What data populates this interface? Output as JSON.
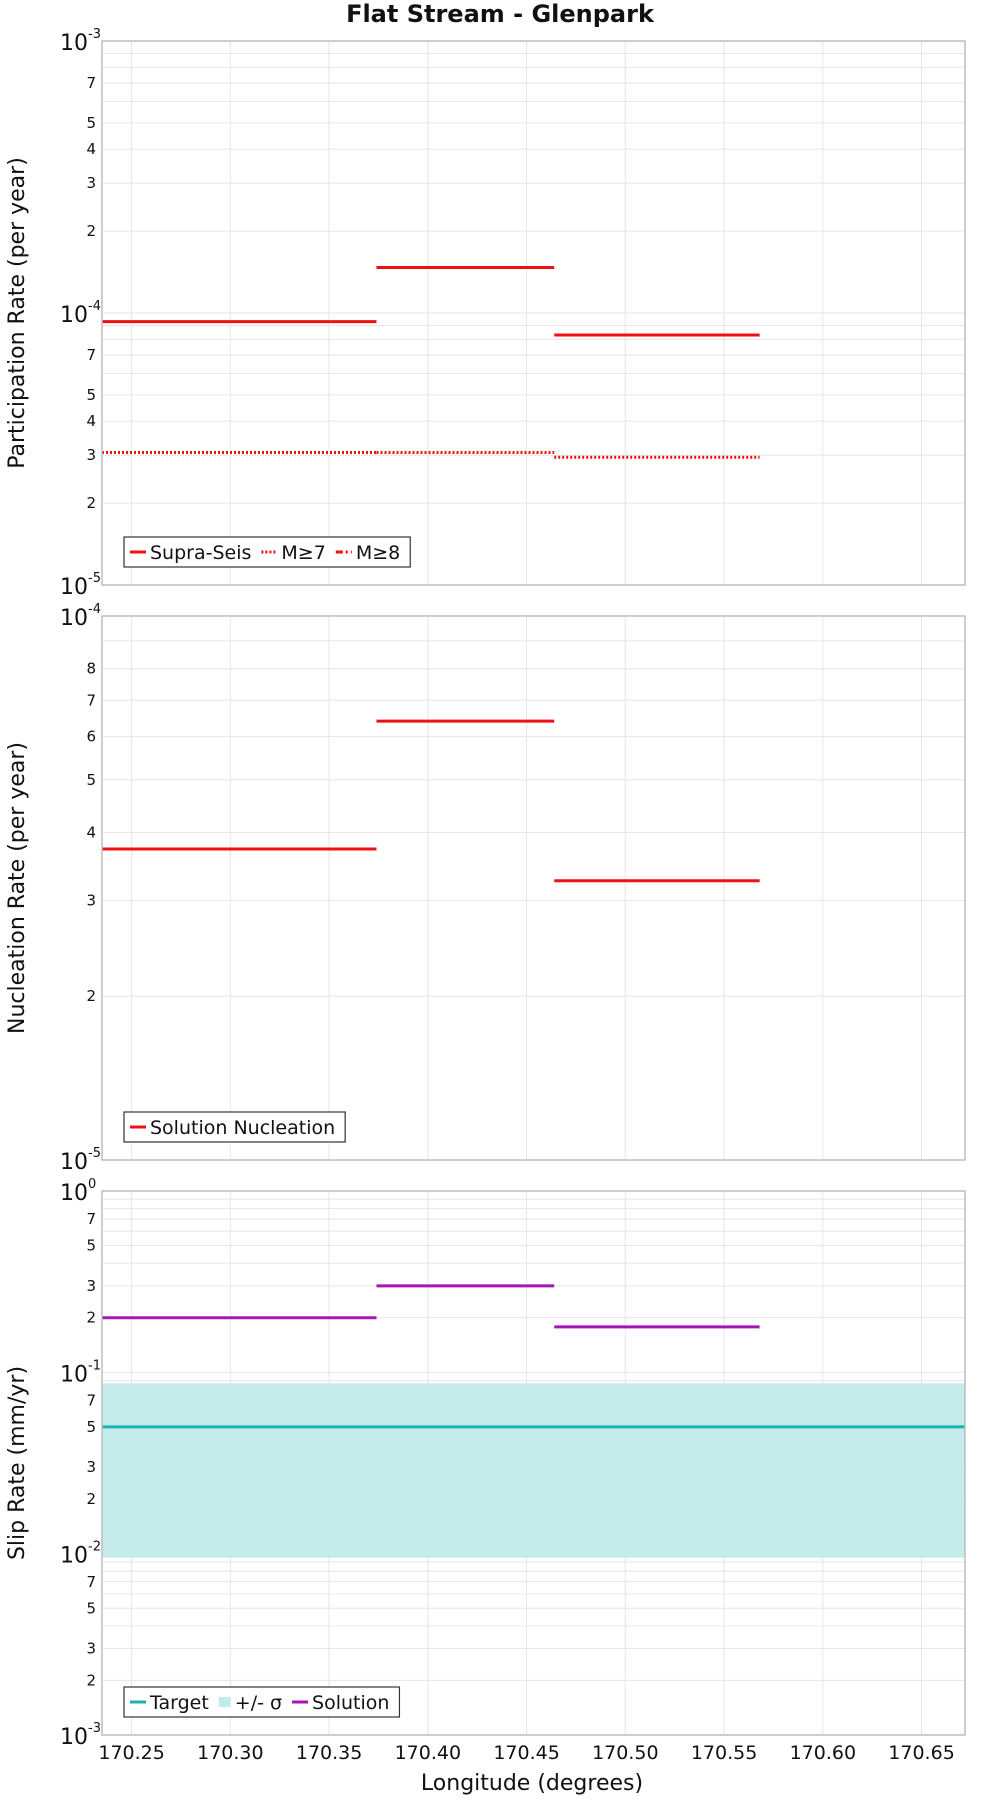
{
  "title": "Flat Stream - Glenpark",
  "xlabel": "Longitude (degrees)",
  "x_ticks": [
    "170.25",
    "170.30",
    "170.35",
    "170.40",
    "170.45",
    "170.50",
    "170.55",
    "170.60",
    "170.65"
  ],
  "colors": {
    "red": "#ee1111",
    "magenta": "#a514b5",
    "teal": "#1ab3ad",
    "band": "#c2ebea"
  },
  "chart_data": [
    {
      "type": "line",
      "subtype": "step",
      "ylabel": "Participation Rate (per year)",
      "yscale": "log",
      "xlim": [
        170.235,
        170.672
      ],
      "ylim": [
        1e-05,
        0.001
      ],
      "grid": true,
      "legend_position": "bottom-left",
      "legend": [
        "Supra-Seis",
        "M≥7",
        "M≥8"
      ],
      "series": [
        {
          "name": "Supra-Seis",
          "style": "solid",
          "color": "#ee1111",
          "segments": [
            {
              "x": [
                170.235,
                170.374
              ],
              "y": 9.3e-05
            },
            {
              "x": [
                170.374,
                170.464
              ],
              "y": 0.000147
            },
            {
              "x": [
                170.464,
                170.568
              ],
              "y": 8.3e-05
            }
          ]
        },
        {
          "name": "M≥7",
          "style": "dotted",
          "color": "#ee1111",
          "segments": [
            {
              "x": [
                170.235,
                170.374
              ],
              "y": 3.07e-05
            },
            {
              "x": [
                170.374,
                170.464
              ],
              "y": 3.07e-05
            },
            {
              "x": [
                170.464,
                170.568
              ],
              "y": 2.95e-05
            }
          ]
        },
        {
          "name": "M≥8",
          "style": "dashdot",
          "color": "#ee1111",
          "segments": []
        }
      ]
    },
    {
      "type": "line",
      "subtype": "step",
      "ylabel": "Nucleation Rate (per year)",
      "yscale": "log",
      "xlim": [
        170.235,
        170.672
      ],
      "ylim": [
        1e-05,
        0.0001
      ],
      "grid": true,
      "legend_position": "bottom-left",
      "legend": [
        "Solution Nucleation"
      ],
      "series": [
        {
          "name": "Solution Nucleation",
          "style": "solid",
          "color": "#ee1111",
          "segments": [
            {
              "x": [
                170.235,
                170.374
              ],
              "y": 3.73e-05
            },
            {
              "x": [
                170.374,
                170.464
              ],
              "y": 6.41e-05
            },
            {
              "x": [
                170.464,
                170.568
              ],
              "y": 3.26e-05
            }
          ]
        }
      ]
    },
    {
      "type": "line",
      "subtype": "step",
      "ylabel": "Slip Rate (mm/yr)",
      "yscale": "log",
      "xlim": [
        170.235,
        170.672
      ],
      "ylim": [
        0.001,
        1
      ],
      "grid": true,
      "legend_position": "bottom-left",
      "legend": [
        "Target",
        "+/- σ",
        "Solution"
      ],
      "band": {
        "name": "+/- σ",
        "color": "#c2ebea",
        "x": [
          170.235,
          170.672
        ],
        "y": [
          0.0095,
          0.087
        ]
      },
      "series": [
        {
          "name": "Target",
          "style": "solid",
          "color": "#1ab3ad",
          "segments": [
            {
              "x": [
                170.235,
                170.672
              ],
              "y": 0.05
            }
          ]
        },
        {
          "name": "Solution",
          "style": "solid",
          "color": "#a514b5",
          "segments": [
            {
              "x": [
                170.235,
                170.374
              ],
              "y": 0.2
            },
            {
              "x": [
                170.374,
                170.464
              ],
              "y": 0.3
            },
            {
              "x": [
                170.464,
                170.568
              ],
              "y": 0.178
            }
          ]
        }
      ]
    }
  ],
  "y_ticks": [
    {
      "labels": [
        {
          "v": 2e-05,
          "t": "2"
        },
        {
          "v": 3e-05,
          "t": "3"
        },
        {
          "v": 4e-05,
          "t": "4"
        },
        {
          "v": 5e-05,
          "t": "5"
        },
        {
          "v": 7e-05,
          "t": "7"
        },
        {
          "v": 0.0002,
          "t": "2"
        },
        {
          "v": 0.0003,
          "t": "3"
        },
        {
          "v": 0.0004,
          "t": "4"
        },
        {
          "v": 0.0005,
          "t": "5"
        },
        {
          "v": 0.0007,
          "t": "7"
        }
      ],
      "decades": [
        {
          "v": 1e-05,
          "base": "10",
          "exp": "-5"
        },
        {
          "v": 0.0001,
          "base": "10",
          "exp": "-4"
        },
        {
          "v": 0.001,
          "base": "10",
          "exp": "-3"
        }
      ]
    },
    {
      "labels": [
        {
          "v": 2e-05,
          "t": "2"
        },
        {
          "v": 3e-05,
          "t": "3"
        },
        {
          "v": 4e-05,
          "t": "4"
        },
        {
          "v": 5e-05,
          "t": "5"
        },
        {
          "v": 6e-05,
          "t": "6"
        },
        {
          "v": 7e-05,
          "t": "7"
        },
        {
          "v": 8e-05,
          "t": "8"
        }
      ],
      "decades": [
        {
          "v": 1e-05,
          "base": "10",
          "exp": "-5"
        },
        {
          "v": 0.0001,
          "base": "10",
          "exp": "-4"
        }
      ]
    },
    {
      "labels": [
        {
          "v": 0.002,
          "t": "2"
        },
        {
          "v": 0.003,
          "t": "3"
        },
        {
          "v": 0.005,
          "t": "5"
        },
        {
          "v": 0.007,
          "t": "7"
        },
        {
          "v": 0.02,
          "t": "2"
        },
        {
          "v": 0.03,
          "t": "3"
        },
        {
          "v": 0.05,
          "t": "5"
        },
        {
          "v": 0.07,
          "t": "7"
        },
        {
          "v": 0.2,
          "t": "2"
        },
        {
          "v": 0.3,
          "t": "3"
        },
        {
          "v": 0.5,
          "t": "5"
        },
        {
          "v": 0.7,
          "t": "7"
        }
      ],
      "decades": [
        {
          "v": 0.001,
          "base": "10",
          "exp": "-3"
        },
        {
          "v": 0.01,
          "base": "10",
          "exp": "-2"
        },
        {
          "v": 0.1,
          "base": "10",
          "exp": "-1"
        },
        {
          "v": 1,
          "base": "10",
          "exp": "0"
        }
      ]
    }
  ]
}
